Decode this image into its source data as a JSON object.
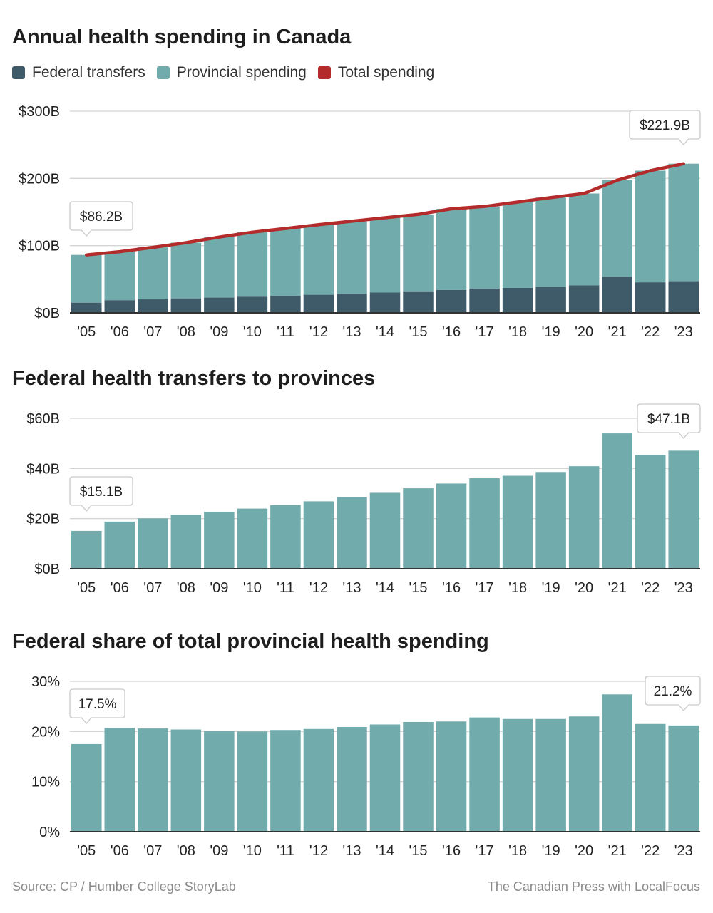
{
  "colors": {
    "federal": "#3f5b69",
    "provincial": "#72abab",
    "total": "#b42b2b",
    "grid": "#d4d4d4",
    "axis": "#333333",
    "text": "#222222"
  },
  "legend": [
    {
      "label": "Federal transfers",
      "color": "#3f5b69"
    },
    {
      "label": "Provincial spending",
      "color": "#72abab"
    },
    {
      "label": "Total spending",
      "color": "#b42b2b"
    }
  ],
  "chart_data": [
    {
      "type": "bar",
      "stacked": true,
      "title": "Annual health spending in Canada",
      "categories": [
        "'05",
        "'06",
        "'07",
        "'08",
        "'09",
        "'10",
        "'11",
        "'12",
        "'13",
        "'14",
        "'15",
        "'16",
        "'17",
        "'18",
        "'19",
        "'20",
        "'21",
        "'22",
        "'23"
      ],
      "yticks": [
        "$0B",
        "$100B",
        "$200B",
        "$300B"
      ],
      "ylim": [
        0,
        300
      ],
      "series": [
        {
          "name": "Federal transfers",
          "values": [
            15.1,
            18.8,
            20.1,
            21.5,
            22.7,
            24.0,
            25.4,
            26.9,
            28.6,
            30.3,
            32.1,
            34.0,
            36.1,
            37.1,
            38.6,
            40.9,
            54.0,
            45.4,
            47.1
          ]
        },
        {
          "name": "Total spending",
          "values": [
            86.2,
            91.0,
            97.4,
            104.4,
            112.7,
            120.0,
            125.5,
            131.2,
            136.4,
            141.5,
            146.5,
            154.8,
            158.3,
            164.8,
            171.5,
            177.6,
            197.3,
            211.5,
            221.9
          ]
        }
      ],
      "annotations": [
        {
          "label": "$86.2B",
          "index": 0
        },
        {
          "label": "$221.9B",
          "index": 18
        }
      ]
    },
    {
      "type": "bar",
      "title": "Federal health transfers to provinces",
      "categories": [
        "'05",
        "'06",
        "'07",
        "'08",
        "'09",
        "'10",
        "'11",
        "'12",
        "'13",
        "'14",
        "'15",
        "'16",
        "'17",
        "'18",
        "'19",
        "'20",
        "'21",
        "'22",
        "'23"
      ],
      "yticks": [
        "$0B",
        "$20B",
        "$40B",
        "$60B"
      ],
      "ylim": [
        0,
        60
      ],
      "values": [
        15.1,
        18.8,
        20.1,
        21.5,
        22.7,
        24.0,
        25.4,
        26.9,
        28.6,
        30.3,
        32.1,
        34.0,
        36.1,
        37.1,
        38.6,
        40.9,
        54.0,
        45.4,
        47.1
      ],
      "annotations": [
        {
          "label": "$15.1B",
          "index": 0
        },
        {
          "label": "$47.1B",
          "index": 18
        }
      ]
    },
    {
      "type": "bar",
      "title": "Federal share of total provincial health spending",
      "categories": [
        "'05",
        "'06",
        "'07",
        "'08",
        "'09",
        "'10",
        "'11",
        "'12",
        "'13",
        "'14",
        "'15",
        "'16",
        "'17",
        "'18",
        "'19",
        "'20",
        "'21",
        "'22",
        "'23"
      ],
      "yticks": [
        "0%",
        "10%",
        "20%",
        "30%"
      ],
      "ylim": [
        0,
        30
      ],
      "values": [
        17.5,
        20.7,
        20.6,
        20.4,
        20.1,
        20.0,
        20.3,
        20.5,
        20.9,
        21.4,
        21.9,
        22.0,
        22.8,
        22.5,
        22.5,
        23.0,
        27.4,
        21.5,
        21.2
      ],
      "annotations": [
        {
          "label": "17.5%",
          "index": 0
        },
        {
          "label": "21.2%",
          "index": 18
        }
      ]
    }
  ],
  "footer": {
    "source": "Source:  CP / Humber College StoryLab",
    "credit": "The Canadian Press with LocalFocus"
  }
}
